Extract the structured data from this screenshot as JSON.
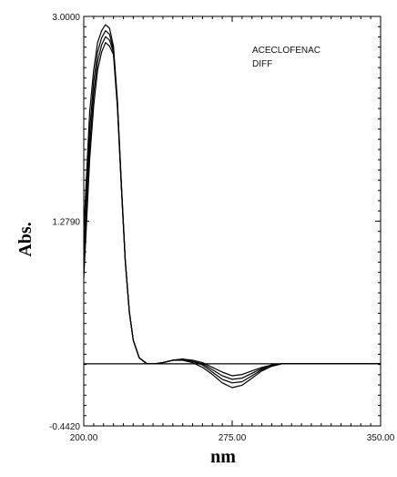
{
  "chart_data": {
    "type": "line",
    "title": "",
    "xlabel": "nm",
    "ylabel": "Abs.",
    "xlim": [
      200.0,
      350.0
    ],
    "ylim": [
      -0.442,
      3.0
    ],
    "x_ticks": [
      "200.00",
      "275.00",
      "350.00"
    ],
    "y_ticks": [
      "3.0000",
      "1.2790",
      "-0.4420"
    ],
    "x_tick_values": [
      200.0,
      275.0,
      350.0
    ],
    "y_tick_values": [
      3.0,
      1.279,
      -0.442
    ],
    "annotations": [
      "ACECLOFENAC",
      "DIFF"
    ],
    "grid": false,
    "series": [
      {
        "x": [
          200,
          203,
          205,
          207,
          209,
          211,
          213,
          215,
          217,
          219,
          221,
          223,
          225,
          228,
          232,
          236,
          240,
          245,
          250,
          255,
          260,
          265,
          270,
          275,
          280,
          285,
          290,
          295,
          300,
          310,
          320,
          335,
          350
        ],
        "y": [
          1.2,
          2.2,
          2.55,
          2.78,
          2.88,
          2.93,
          2.9,
          2.75,
          2.3,
          1.6,
          0.95,
          0.52,
          0.28,
          0.13,
          0.08,
          0.08,
          0.09,
          0.11,
          0.12,
          0.11,
          0.09,
          0.05,
          0.01,
          -0.02,
          -0.01,
          0.02,
          0.05,
          0.07,
          0.08,
          0.08,
          0.08,
          0.08,
          0.08
        ]
      },
      {
        "x": [
          200,
          203,
          205,
          207,
          209,
          211,
          213,
          215,
          217,
          219,
          221,
          223,
          225,
          228,
          232,
          236,
          240,
          245,
          250,
          255,
          260,
          265,
          270,
          275,
          280,
          285,
          290,
          295,
          300,
          310,
          320,
          335,
          350
        ],
        "y": [
          1.0,
          2.05,
          2.45,
          2.7,
          2.82,
          2.88,
          2.85,
          2.72,
          2.28,
          1.58,
          0.94,
          0.52,
          0.28,
          0.13,
          0.08,
          0.08,
          0.09,
          0.11,
          0.12,
          0.1,
          0.08,
          0.03,
          -0.02,
          -0.05,
          -0.04,
          0.0,
          0.04,
          0.07,
          0.08,
          0.08,
          0.08,
          0.08,
          0.08
        ]
      },
      {
        "x": [
          200,
          203,
          205,
          207,
          209,
          211,
          213,
          215,
          217,
          219,
          221,
          223,
          225,
          228,
          232,
          236,
          240,
          245,
          250,
          255,
          260,
          265,
          270,
          275,
          280,
          285,
          290,
          295,
          300,
          310,
          320,
          335,
          350
        ],
        "y": [
          0.9,
          1.92,
          2.35,
          2.62,
          2.76,
          2.83,
          2.8,
          2.7,
          2.26,
          1.57,
          0.94,
          0.52,
          0.28,
          0.13,
          0.08,
          0.08,
          0.09,
          0.11,
          0.12,
          0.1,
          0.07,
          0.01,
          -0.05,
          -0.08,
          -0.07,
          -0.02,
          0.03,
          0.06,
          0.08,
          0.08,
          0.08,
          0.08,
          0.08
        ]
      },
      {
        "x": [
          200,
          203,
          205,
          207,
          209,
          211,
          213,
          215,
          217,
          219,
          221,
          223,
          225,
          228,
          232,
          236,
          240,
          245,
          250,
          255,
          260,
          265,
          270,
          275,
          280,
          285,
          290,
          295,
          300,
          310,
          320,
          335,
          350
        ],
        "y": [
          0.8,
          1.8,
          2.25,
          2.55,
          2.7,
          2.78,
          2.75,
          2.68,
          2.24,
          1.56,
          0.94,
          0.52,
          0.28,
          0.13,
          0.08,
          0.08,
          0.09,
          0.11,
          0.11,
          0.09,
          0.05,
          -0.01,
          -0.08,
          -0.12,
          -0.1,
          -0.04,
          0.02,
          0.06,
          0.08,
          0.08,
          0.08,
          0.08,
          0.08
        ]
      },
      {
        "x": [
          200,
          350
        ],
        "y": [
          0.08,
          0.08
        ]
      }
    ]
  }
}
